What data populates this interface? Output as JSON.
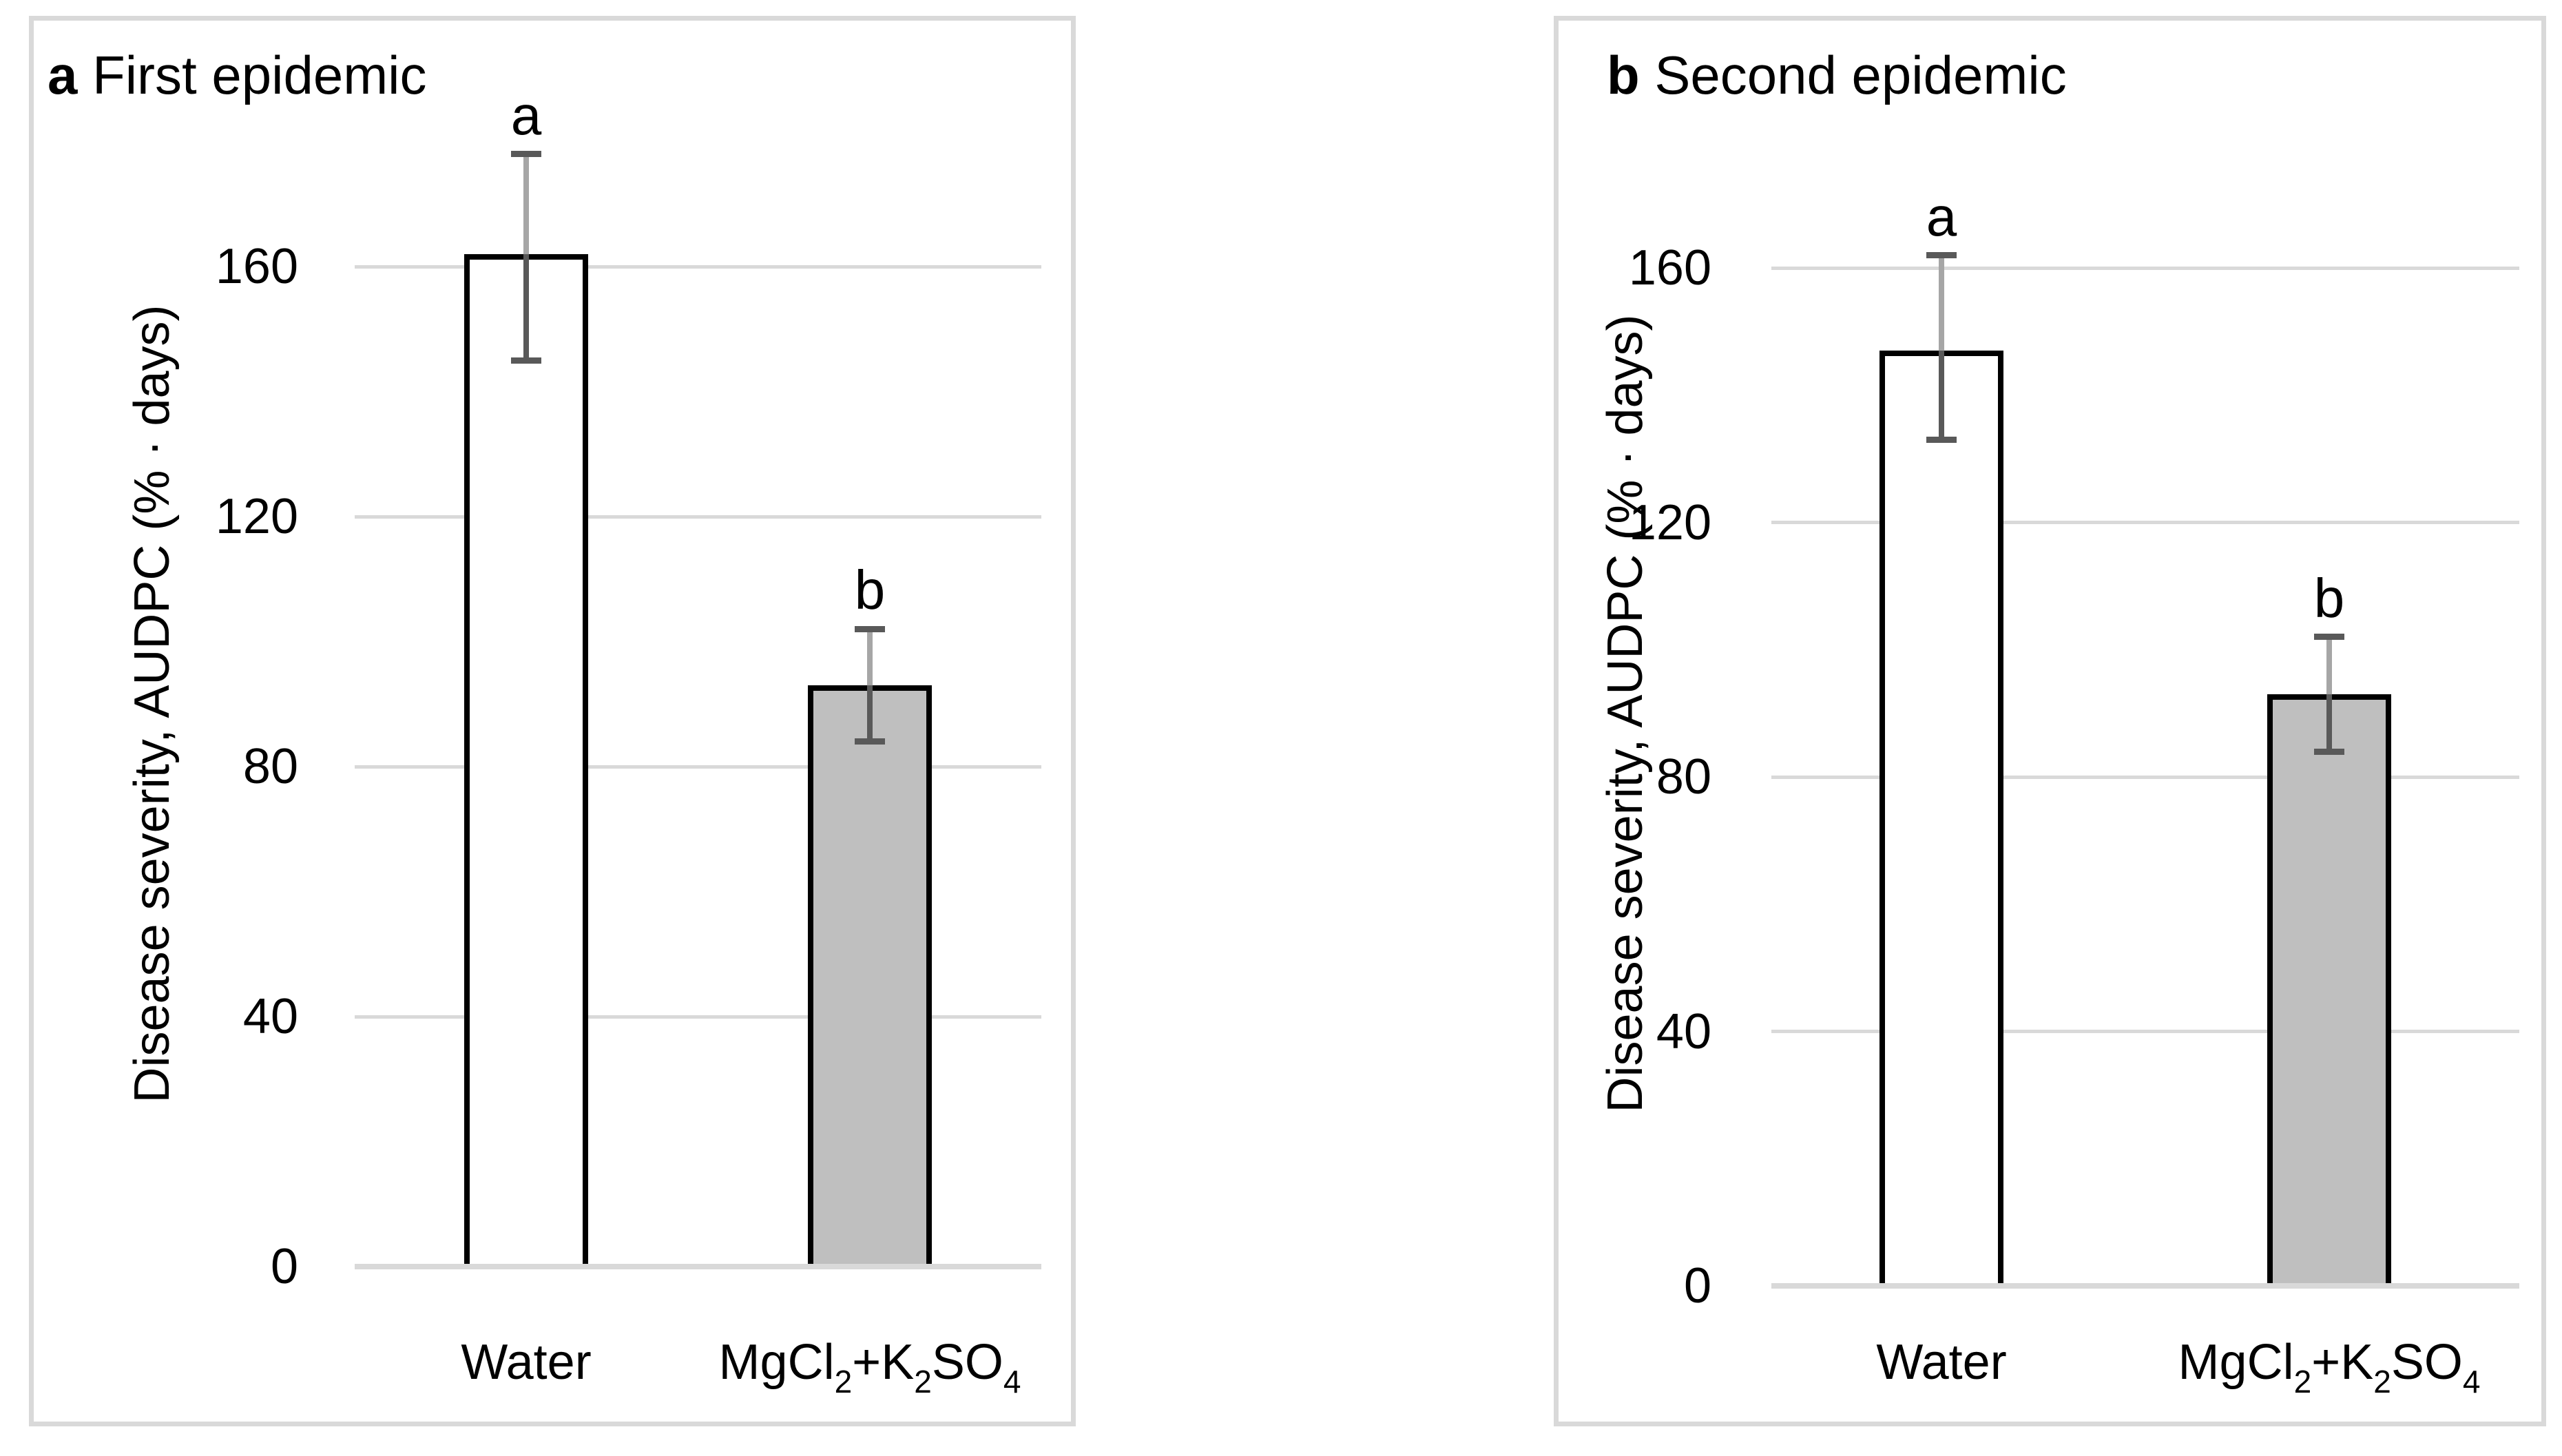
{
  "figure": {
    "background": "#ffffff",
    "panel_border_color": "#d9d9d9",
    "grid_color": "#d9d9d9",
    "axis_line_color": "#d9d9d9",
    "text_color": "#000000",
    "error_bar_colors": {
      "cap": "#595959",
      "line_upper": "#a6a6a6",
      "line_lower": "#595959"
    }
  },
  "chart_data": [
    {
      "type": "bar",
      "panel_label": "a",
      "title": "First epidemic",
      "ylabel": "Disease severity, AUDPC (% · days)",
      "ylim": [
        0,
        180
      ],
      "yticks": [
        0,
        40,
        80,
        120,
        160
      ],
      "grid": true,
      "legend": "none",
      "categories": [
        "Water",
        "MgCl2+K2SO4"
      ],
      "categories_rich": [
        [
          {
            "t": "Water"
          }
        ],
        [
          {
            "t": "MgCl"
          },
          {
            "t": "2",
            "sub": true
          },
          {
            "t": "+K"
          },
          {
            "t": "2",
            "sub": true
          },
          {
            "t": "SO"
          },
          {
            "t": "4",
            "sub": true
          }
        ]
      ],
      "series": [
        {
          "name": "Disease severity AUDPC",
          "values": [
            162,
            93
          ],
          "error_low": [
            145,
            84
          ],
          "error_high": [
            178,
            102
          ],
          "sig_letters": [
            "a",
            "b"
          ],
          "bar_fills": [
            "#ffffff",
            "#bfbfbf"
          ],
          "bar_border": "#000000"
        }
      ]
    },
    {
      "type": "bar",
      "panel_label": "b",
      "title": "Second epidemic",
      "ylabel": "Disease severity, AUDPC (% · days)",
      "ylim": [
        0,
        180
      ],
      "yticks": [
        0,
        40,
        80,
        120,
        160
      ],
      "grid": true,
      "legend": "none",
      "categories": [
        "Water",
        "MgCl2+K2SO4"
      ],
      "categories_rich": [
        [
          {
            "t": "Water"
          }
        ],
        [
          {
            "t": "MgCl"
          },
          {
            "t": "2",
            "sub": true
          },
          {
            "t": "+K"
          },
          {
            "t": "2",
            "sub": true
          },
          {
            "t": "SO"
          },
          {
            "t": "4",
            "sub": true
          }
        ]
      ],
      "series": [
        {
          "name": "Disease severity AUDPC",
          "values": [
            147,
            93
          ],
          "error_low": [
            133,
            84
          ],
          "error_high": [
            162,
            102
          ],
          "sig_letters": [
            "a",
            "b"
          ],
          "bar_fills": [
            "#ffffff",
            "#bfbfbf"
          ],
          "bar_border": "#000000"
        }
      ]
    }
  ]
}
